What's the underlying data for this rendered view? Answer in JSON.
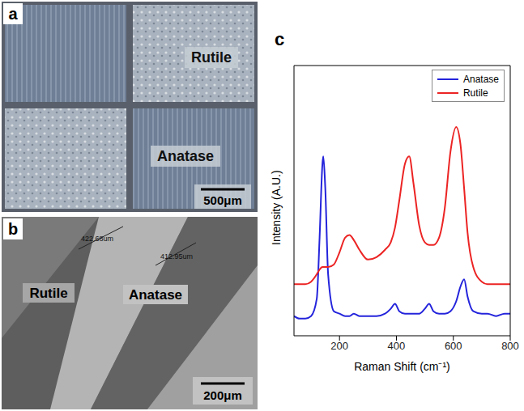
{
  "figure": {
    "panel_a": {
      "label": "a",
      "regions": [
        "Rutile",
        "Anatase"
      ],
      "scale_bar": "500μm"
    },
    "panel_b": {
      "label": "b",
      "regions": [
        "Rutile",
        "Anatase"
      ],
      "measurements": [
        "422.68um",
        "412.95um"
      ],
      "scale_bar": "200μm"
    },
    "panel_c": {
      "label": "c"
    }
  },
  "chart_data": {
    "type": "line",
    "x_label": "Raman Shift (cm⁻¹)",
    "y_label": "Intensity (A.U.)",
    "x": [
      40,
      60,
      80,
      100,
      120,
      130,
      140,
      143,
      150,
      160,
      180,
      200,
      220,
      235,
      250,
      270,
      300,
      330,
      360,
      380,
      395,
      410,
      430,
      445,
      460,
      480,
      500,
      515,
      530,
      550,
      570,
      590,
      610,
      625,
      638,
      650,
      670,
      700,
      720,
      750,
      780,
      800
    ],
    "series": [
      {
        "name": "Anatase",
        "color": "#2424dc",
        "values": [
          8,
          7,
          7,
          8,
          15,
          40,
          70,
          73,
          60,
          25,
          10,
          9,
          8,
          8,
          9,
          8,
          8,
          8,
          9,
          11,
          13,
          10,
          9,
          9,
          9,
          9,
          11,
          13,
          10,
          9,
          9,
          10,
          14,
          20,
          23,
          16,
          10,
          9,
          9,
          8,
          9,
          9
        ]
      },
      {
        "name": "Rutile",
        "color": "#ec2424",
        "values": [
          21,
          21,
          21,
          22,
          25,
          27,
          28,
          28,
          28,
          28,
          29,
          34,
          40,
          41,
          39,
          35,
          31,
          32,
          35,
          38,
          44,
          55,
          70,
          73,
          62,
          45,
          38,
          37,
          37,
          40,
          52,
          75,
          85,
          78,
          60,
          42,
          28,
          22,
          21,
          21,
          21,
          21
        ]
      }
    ],
    "xlim": [
      40,
      800
    ],
    "xticks": [
      200,
      400,
      600,
      800
    ],
    "ylim": [
      0,
      110
    ],
    "tick_labels": "x",
    "legend": "upper right",
    "grid": false
  }
}
